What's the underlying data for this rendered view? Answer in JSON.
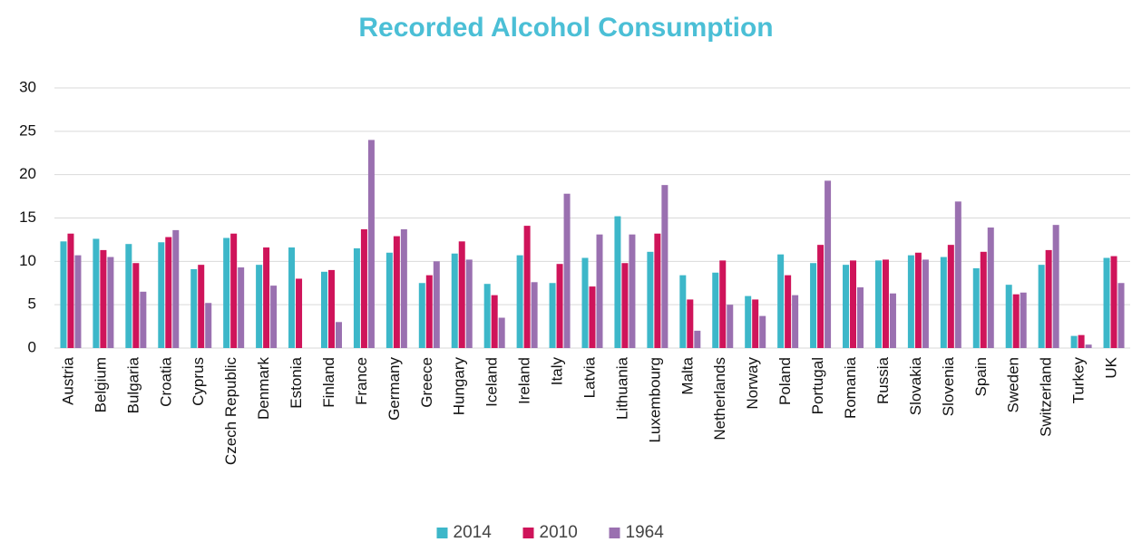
{
  "chart_data": {
    "type": "bar",
    "title": "Recorded Alcohol Consumption",
    "categories": [
      "Austria",
      "Belgium",
      "Bulgaria",
      "Croatia",
      "Cyprus",
      "Czech Republic",
      "Denmark",
      "Estonia",
      "Finland",
      "France",
      "Germany",
      "Greece",
      "Hungary",
      "Iceland",
      "Ireland",
      "Italy",
      "Latvia",
      "Lithuania",
      "Luxembourg",
      "Malta",
      "Netherlands",
      "Norway",
      "Poland",
      "Portugal",
      "Romania",
      "Russia",
      "Slovakia",
      "Slovenia",
      "Spain",
      "Sweden",
      "Switzerland",
      "Turkey",
      "UK"
    ],
    "series": [
      {
        "name": "2014",
        "color": "#3db7c9",
        "values": [
          12.3,
          12.6,
          12.0,
          12.2,
          9.1,
          12.7,
          9.6,
          11.6,
          8.8,
          11.5,
          11.0,
          7.5,
          10.9,
          7.4,
          10.7,
          7.5,
          10.4,
          15.2,
          11.1,
          8.4,
          8.7,
          6.0,
          10.8,
          9.8,
          9.6,
          10.1,
          10.7,
          10.5,
          9.2,
          7.3,
          9.6,
          1.4,
          10.4
        ]
      },
      {
        "name": "2010",
        "color": "#cf145a",
        "values": [
          13.2,
          11.3,
          9.8,
          12.8,
          9.6,
          13.2,
          11.6,
          8.0,
          9.0,
          13.7,
          12.9,
          8.4,
          12.3,
          6.1,
          14.1,
          9.7,
          7.1,
          9.8,
          13.2,
          5.6,
          10.1,
          5.6,
          8.4,
          11.9,
          10.1,
          10.2,
          11.0,
          11.9,
          11.1,
          6.2,
          11.3,
          1.5,
          10.6
        ]
      },
      {
        "name": "1964",
        "color": "#9a70b0",
        "values": [
          10.7,
          10.5,
          6.5,
          13.6,
          5.2,
          9.3,
          7.2,
          null,
          3.0,
          24.0,
          13.7,
          10.0,
          10.2,
          3.5,
          7.6,
          17.8,
          13.1,
          13.1,
          18.8,
          2.0,
          5.0,
          3.7,
          6.1,
          19.3,
          7.0,
          6.3,
          10.2,
          16.9,
          13.9,
          6.4,
          14.2,
          0.4,
          7.5
        ]
      }
    ],
    "ylim": [
      0,
      30
    ],
    "yticks": [
      0,
      5,
      10,
      15,
      20,
      25,
      30
    ],
    "grid": true,
    "legend": "bottom"
  }
}
